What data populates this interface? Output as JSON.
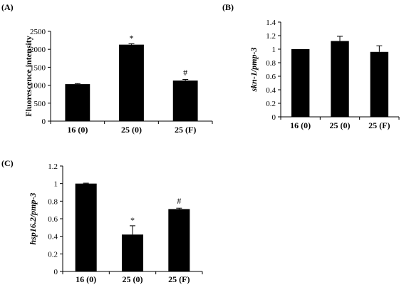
{
  "chart_data": [
    {
      "panel": "(A)",
      "type": "bar",
      "categories": [
        "16 (0)",
        "25 (0)",
        "25 (F)"
      ],
      "values": [
        1030,
        2130,
        1130
      ],
      "errors": [
        15,
        25,
        30
      ],
      "annotations": [
        "",
        "*",
        "#"
      ],
      "title": "",
      "xlabel": "",
      "ylabel": "Fluorescence intensity",
      "ylabel_italic": false,
      "ylim": [
        0,
        2500
      ],
      "yticks": [
        "0",
        "500",
        "1000",
        "1500",
        "2000",
        "2500"
      ],
      "grid": false,
      "bar_color": "#000000"
    },
    {
      "panel": "(B)",
      "type": "bar",
      "categories": [
        "16 (0)",
        "25 (0)",
        "25 (F)"
      ],
      "values": [
        1.0,
        1.12,
        0.96
      ],
      "errors": [
        0,
        0.07,
        0.09
      ],
      "annotations": [
        "",
        "",
        ""
      ],
      "title": "",
      "xlabel": "",
      "ylabel": "skn-1/pmp-3",
      "ylabel_italic": true,
      "ylim": [
        0,
        1.4
      ],
      "yticks": [
        "0",
        "0.2",
        "0.4",
        "0.6",
        "0.8",
        "1",
        "1.2",
        "1.4"
      ],
      "grid": false,
      "bar_color": "#000000"
    },
    {
      "panel": "(C)",
      "type": "bar",
      "categories": [
        "16 (0)",
        "25 (0)",
        "25 (F)"
      ],
      "values": [
        1.0,
        0.42,
        0.71
      ],
      "errors": [
        0.005,
        0.1,
        0.01
      ],
      "annotations": [
        "",
        "*",
        "#"
      ],
      "title": "",
      "xlabel": "",
      "ylabel": "hsp16.2/pmp-3",
      "ylabel_italic": true,
      "ylim": [
        0,
        1.2
      ],
      "yticks": [
        "0",
        "0.2",
        "0.4",
        "0.6",
        "0.8",
        "1",
        "1.2"
      ],
      "grid": false,
      "bar_color": "#000000"
    }
  ]
}
